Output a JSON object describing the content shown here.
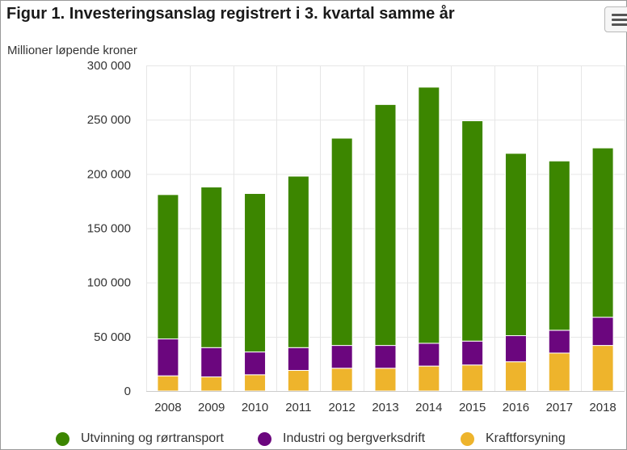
{
  "title": "Figur 1. Investeringsanslag registrert i 3. kvartal samme år",
  "menu_icon": "hamburger-menu-icon",
  "chart_data": {
    "type": "bar",
    "stacked": true,
    "title": "Figur 1. Investeringsanslag registrert i 3. kvartal samme år",
    "ylabel": "Millioner løpende kroner",
    "xlabel": "",
    "ylim": [
      0,
      300000
    ],
    "yticks": [
      0,
      50000,
      100000,
      150000,
      200000,
      250000,
      300000
    ],
    "ytick_labels": [
      "0",
      "50 000",
      "100 000",
      "150 000",
      "200 000",
      "250 000",
      "300 000"
    ],
    "grid": true,
    "legend_position": "bottom",
    "categories": [
      "2008",
      "2009",
      "2010",
      "2011",
      "2012",
      "2013",
      "2014",
      "2015",
      "2016",
      "2017",
      "2018"
    ],
    "series": [
      {
        "name": "Kraftforsyning",
        "color": "#eeb42c",
        "values": [
          14000,
          13000,
          15000,
          19000,
          21000,
          21000,
          23000,
          24000,
          27000,
          35000,
          42000
        ]
      },
      {
        "name": "Industri og bergverksdrift",
        "color": "#6b067e",
        "values": [
          34000,
          27000,
          21000,
          21000,
          21000,
          21000,
          21000,
          22000,
          24000,
          21000,
          26000
        ]
      },
      {
        "name": "Utvinning og rørtransport",
        "color": "#3c8600",
        "values": [
          133000,
          148000,
          146000,
          158000,
          191000,
          222000,
          236000,
          203000,
          168000,
          156000,
          156000
        ]
      }
    ]
  },
  "legend": [
    {
      "label": "Utvinning og rørtransport",
      "color": "#3c8600",
      "icon": "green-circle-icon"
    },
    {
      "label": "Industri og bergverksdrift",
      "color": "#6b067e",
      "icon": "purple-circle-icon"
    },
    {
      "label": "Kraftforsyning",
      "color": "#eeb42c",
      "icon": "yellow-circle-icon"
    }
  ]
}
